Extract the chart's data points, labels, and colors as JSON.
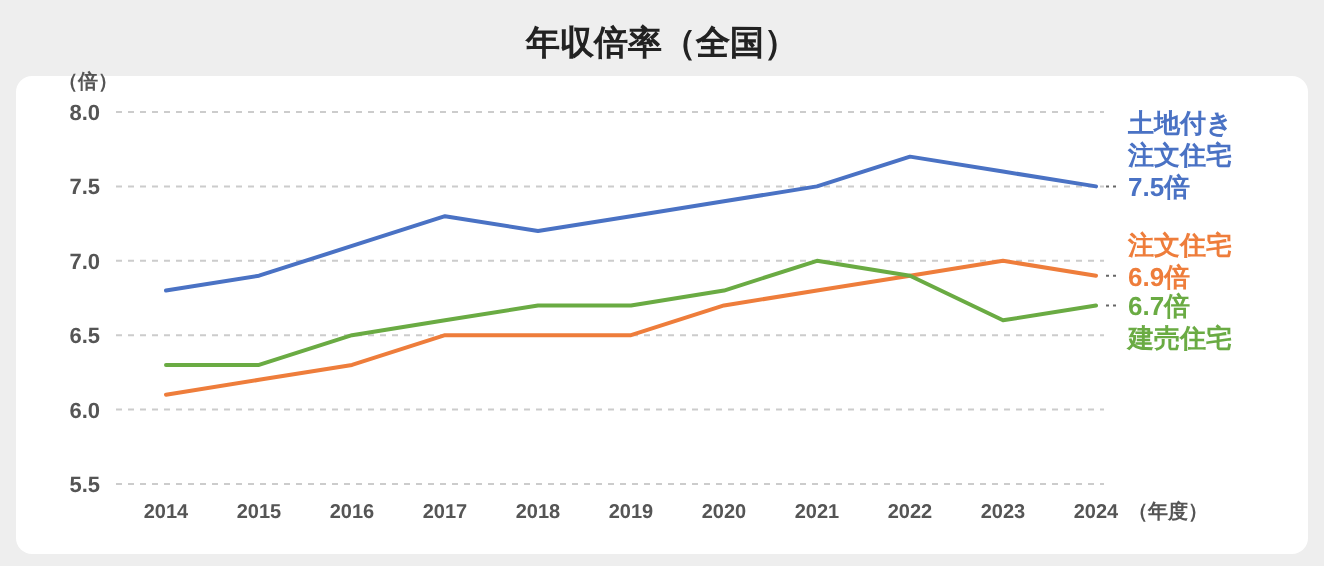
{
  "chart_data": {
    "type": "line",
    "title": "年収倍率（全国）",
    "ylabel": "（倍）",
    "xlabel": "（年度）",
    "categories": [
      "2014",
      "2015",
      "2016",
      "2017",
      "2018",
      "2019",
      "2020",
      "2021",
      "2022",
      "2023",
      "2024"
    ],
    "ylim": [
      5.5,
      8.0
    ],
    "yticks": [
      {
        "value": 5.5,
        "label": "5.5"
      },
      {
        "value": 6.0,
        "label": "6.0"
      },
      {
        "value": 6.5,
        "label": "6.5"
      },
      {
        "value": 7.0,
        "label": "7.0"
      },
      {
        "value": 7.5,
        "label": "7.5"
      },
      {
        "value": 8.0,
        "label": "8.0"
      }
    ],
    "grid": "y",
    "legend": false,
    "marker": "none",
    "line_style": "solid",
    "series": [
      {
        "name": "土地付き注文住宅",
        "color": "#4a72c4",
        "values": [
          6.8,
          6.9,
          7.1,
          7.3,
          7.2,
          7.3,
          7.4,
          7.5,
          7.7,
          7.6,
          7.5
        ],
        "value_labels": [
          null,
          null,
          null,
          null,
          null,
          null,
          null,
          null,
          null,
          null,
          "7.5倍"
        ]
      },
      {
        "name": "注文住宅",
        "color": "#ee7d3b",
        "values": [
          6.1,
          6.2,
          6.3,
          6.5,
          6.5,
          6.5,
          6.7,
          6.8,
          6.9,
          7.0,
          6.9
        ],
        "value_labels": [
          null,
          null,
          null,
          null,
          null,
          null,
          null,
          null,
          null,
          null,
          "6.9倍"
        ]
      },
      {
        "name": "建売住宅",
        "color": "#6aab43",
        "values": [
          6.3,
          6.3,
          6.5,
          6.6,
          6.7,
          6.7,
          6.8,
          7.0,
          6.9,
          6.6,
          6.7
        ],
        "value_labels": [
          null,
          null,
          null,
          null,
          null,
          null,
          null,
          null,
          null,
          null,
          "6.7倍"
        ]
      }
    ]
  }
}
